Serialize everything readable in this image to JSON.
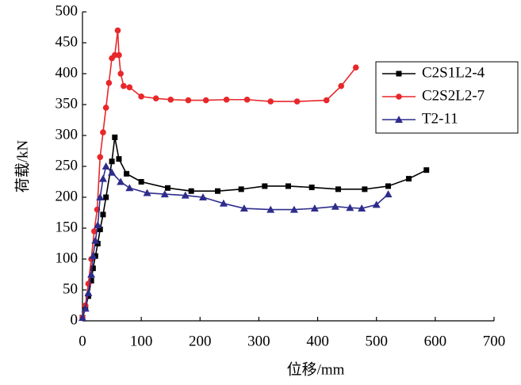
{
  "chart_data": {
    "type": "line",
    "x_label": "位移/mm",
    "y_label": "荷载/kN",
    "xlim": [
      0,
      700
    ],
    "xticks": [
      0,
      100,
      200,
      300,
      400,
      500,
      600,
      700
    ],
    "ylim": [
      0,
      500
    ],
    "yticks": [
      0,
      50,
      100,
      150,
      200,
      250,
      300,
      350,
      400,
      450,
      500
    ],
    "legend": "upper right",
    "series": [
      {
        "name": "C2S1L2-4",
        "color": "#000000",
        "marker": "square",
        "x": [
          0,
          5,
          10,
          15,
          18,
          22,
          26,
          30,
          35,
          40,
          50,
          55,
          62,
          75,
          100,
          145,
          185,
          230,
          270,
          310,
          350,
          390,
          435,
          480,
          520,
          555,
          585
        ],
        "values": [
          5,
          20,
          40,
          65,
          85,
          105,
          125,
          148,
          172,
          200,
          258,
          297,
          262,
          238,
          225,
          215,
          210,
          210,
          213,
          218,
          218,
          216,
          213,
          213,
          218,
          230,
          244
        ]
      },
      {
        "name": "C2S2L2-7",
        "color": "#e8272a",
        "marker": "circle",
        "x": [
          0,
          5,
          10,
          15,
          20,
          25,
          30,
          35,
          40,
          45,
          50,
          55,
          60,
          62,
          65,
          70,
          80,
          100,
          125,
          150,
          180,
          210,
          245,
          280,
          320,
          365,
          415,
          440,
          465
        ],
        "values": [
          5,
          25,
          60,
          100,
          145,
          180,
          265,
          305,
          345,
          385,
          425,
          430,
          470,
          430,
          400,
          380,
          378,
          363,
          360,
          358,
          357,
          357,
          358,
          358,
          355,
          355,
          357,
          380,
          410
        ]
      },
      {
        "name": "T2-11",
        "color": "#2e2d8c",
        "marker": "triangle",
        "x": [
          0,
          5,
          10,
          15,
          18,
          22,
          26,
          30,
          35,
          40,
          50,
          65,
          80,
          110,
          140,
          175,
          205,
          240,
          275,
          320,
          360,
          395,
          430,
          455,
          475,
          500,
          520
        ],
        "values": [
          5,
          20,
          45,
          75,
          105,
          130,
          155,
          200,
          230,
          250,
          240,
          225,
          215,
          207,
          205,
          203,
          200,
          190,
          182,
          180,
          180,
          182,
          185,
          183,
          182,
          188,
          205
        ]
      }
    ]
  }
}
